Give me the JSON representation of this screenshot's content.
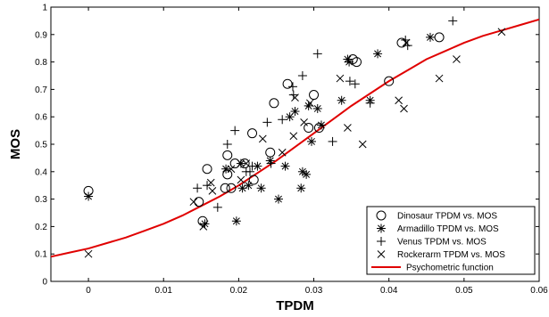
{
  "chart_data": {
    "type": "scatter",
    "title": "",
    "xlabel": "TPDM",
    "ylabel": "MOS",
    "xlim": [
      -0.005,
      0.06
    ],
    "ylim": [
      0,
      1
    ],
    "xticks": [
      0,
      0.01,
      0.02,
      0.03,
      0.04,
      0.05,
      0.06
    ],
    "xtick_labels": [
      "0",
      "0.01",
      "0.02",
      "0.03",
      "0.04",
      "0.05",
      "0.06"
    ],
    "yticks": [
      0,
      0.1,
      0.2,
      0.3,
      0.4,
      0.5,
      0.6,
      0.7,
      0.8,
      0.9,
      1
    ],
    "ytick_labels": [
      "0",
      "0.1",
      "0.2",
      "0.3",
      "0.4",
      "0.5",
      "0.6",
      "0.7",
      "0.8",
      "0.9",
      "1"
    ],
    "grid": false,
    "legend_position": "bottom-right",
    "curve_color": "#e00000",
    "series": [
      {
        "name": "Dinosaur TPDM vs. MOS",
        "marker": "circle",
        "points": [
          [
            0,
            0.33
          ],
          [
            0.0147,
            0.29
          ],
          [
            0.0152,
            0.22
          ],
          [
            0.0158,
            0.41
          ],
          [
            0.0182,
            0.34
          ],
          [
            0.0185,
            0.39
          ],
          [
            0.019,
            0.34
          ],
          [
            0.0195,
            0.43
          ],
          [
            0.0185,
            0.46
          ],
          [
            0.0208,
            0.43
          ],
          [
            0.0218,
            0.54
          ],
          [
            0.022,
            0.37
          ],
          [
            0.0242,
            0.47
          ],
          [
            0.0247,
            0.65
          ],
          [
            0.0265,
            0.72
          ],
          [
            0.0293,
            0.56
          ],
          [
            0.03,
            0.68
          ],
          [
            0.0307,
            0.56
          ],
          [
            0.0352,
            0.81
          ],
          [
            0.0357,
            0.8
          ],
          [
            0.04,
            0.73
          ],
          [
            0.0417,
            0.87
          ],
          [
            0.0467,
            0.89
          ]
        ]
      },
      {
        "name": "Armadillo TPDM vs. MOS",
        "marker": "asterisk",
        "points": [
          [
            0,
            0.31
          ],
          [
            0.0155,
            0.21
          ],
          [
            0.0183,
            0.41
          ],
          [
            0.0197,
            0.22
          ],
          [
            0.0203,
            0.43
          ],
          [
            0.0205,
            0.34
          ],
          [
            0.0213,
            0.35
          ],
          [
            0.0225,
            0.42
          ],
          [
            0.023,
            0.34
          ],
          [
            0.0242,
            0.44
          ],
          [
            0.0253,
            0.3
          ],
          [
            0.0262,
            0.42
          ],
          [
            0.0268,
            0.6
          ],
          [
            0.0275,
            0.62
          ],
          [
            0.0283,
            0.34
          ],
          [
            0.0285,
            0.4
          ],
          [
            0.029,
            0.39
          ],
          [
            0.0293,
            0.64
          ],
          [
            0.0297,
            0.51
          ],
          [
            0.0305,
            0.63
          ],
          [
            0.031,
            0.57
          ],
          [
            0.0337,
            0.66
          ],
          [
            0.0345,
            0.81
          ],
          [
            0.0347,
            0.8
          ],
          [
            0.0375,
            0.66
          ],
          [
            0.0385,
            0.83
          ],
          [
            0.0455,
            0.89
          ]
        ]
      },
      {
        "name": "Venus TPDM vs. MOS",
        "marker": "plus",
        "points": [
          [
            0.0145,
            0.34
          ],
          [
            0.0158,
            0.35
          ],
          [
            0.0172,
            0.27
          ],
          [
            0.0185,
            0.5
          ],
          [
            0.0195,
            0.55
          ],
          [
            0.021,
            0.4
          ],
          [
            0.0215,
            0.4
          ],
          [
            0.0218,
            0.42
          ],
          [
            0.0238,
            0.58
          ],
          [
            0.0243,
            0.43
          ],
          [
            0.0258,
            0.59
          ],
          [
            0.0272,
            0.71
          ],
          [
            0.0273,
            0.68
          ],
          [
            0.0285,
            0.75
          ],
          [
            0.0305,
            0.83
          ],
          [
            0.0325,
            0.51
          ],
          [
            0.0348,
            0.73
          ],
          [
            0.0355,
            0.72
          ],
          [
            0.0375,
            0.65
          ],
          [
            0.0422,
            0.88
          ],
          [
            0.0425,
            0.86
          ],
          [
            0.0485,
            0.95
          ]
        ]
      },
      {
        "name": "Rockerarm TPDM vs. MOS",
        "marker": "cross",
        "points": [
          [
            0,
            0.1
          ],
          [
            0.014,
            0.29
          ],
          [
            0.0153,
            0.2
          ],
          [
            0.0163,
            0.36
          ],
          [
            0.0165,
            0.33
          ],
          [
            0.019,
            0.41
          ],
          [
            0.0203,
            0.37
          ],
          [
            0.021,
            0.43
          ],
          [
            0.0232,
            0.52
          ],
          [
            0.0258,
            0.47
          ],
          [
            0.0273,
            0.53
          ],
          [
            0.0275,
            0.67
          ],
          [
            0.0287,
            0.58
          ],
          [
            0.0295,
            0.65
          ],
          [
            0.0335,
            0.74
          ],
          [
            0.0345,
            0.56
          ],
          [
            0.0365,
            0.5
          ],
          [
            0.0413,
            0.66
          ],
          [
            0.042,
            0.63
          ],
          [
            0.0423,
            0.87
          ],
          [
            0.0467,
            0.74
          ],
          [
            0.049,
            0.81
          ],
          [
            0.055,
            0.91
          ]
        ]
      },
      {
        "name": "Psychometric function",
        "type": "line",
        "x": [
          -0.005,
          -0.0025,
          0,
          0.0025,
          0.005,
          0.0075,
          0.01,
          0.0125,
          0.015,
          0.0175,
          0.02,
          0.0225,
          0.025,
          0.0275,
          0.03,
          0.0325,
          0.035,
          0.0375,
          0.04,
          0.0425,
          0.045,
          0.0475,
          0.05,
          0.0525,
          0.055,
          0.0575,
          0.06
        ],
        "y": [
          0.09,
          0.105,
          0.12,
          0.14,
          0.16,
          0.185,
          0.21,
          0.24,
          0.275,
          0.31,
          0.35,
          0.395,
          0.44,
          0.49,
          0.54,
          0.59,
          0.64,
          0.685,
          0.73,
          0.77,
          0.81,
          0.84,
          0.87,
          0.895,
          0.915,
          0.935,
          0.955
        ]
      }
    ]
  }
}
